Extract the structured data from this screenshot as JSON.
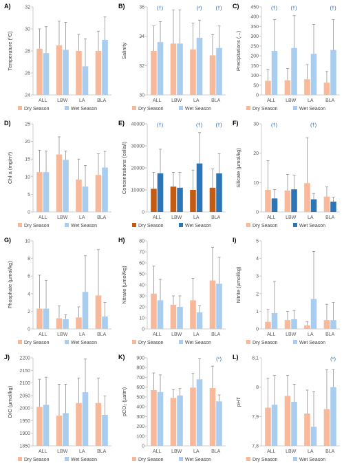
{
  "colors": {
    "dry_light": "#f7b99a",
    "wet_light": "#a8cdee",
    "dry_dark": "#c55a11",
    "wet_dark": "#2e75b6",
    "axis": "#bfbfbf",
    "text": "#595959",
    "sig": "#1f5fa8"
  },
  "chart_data": [
    {
      "type": "bar",
      "panel": "A)",
      "ylabel": "Temperature (ºC)",
      "categories": [
        "ALL",
        "LBW",
        "LA",
        "BLA"
      ],
      "ylim": [
        24,
        32
      ],
      "yticks": [
        24,
        26,
        28,
        30,
        32
      ],
      "decimals": 0,
      "series": [
        {
          "name": "Dry Season",
          "values": [
            28.2,
            28.5,
            28.0,
            28.0
          ],
          "errors": [
            1.8,
            2.2,
            1.5,
            1.8
          ]
        },
        {
          "name": "Wet Season",
          "values": [
            27.8,
            28.1,
            26.6,
            29.0
          ],
          "errors": [
            2.4,
            2.5,
            2.5,
            2.1
          ]
        }
      ],
      "significance": [
        "",
        "",
        "",
        ""
      ],
      "style": "light",
      "legend": "bottom"
    },
    {
      "type": "bar",
      "panel": "B)",
      "ylabel": "Salinity",
      "categories": [
        "ALL",
        "LBW",
        "LA",
        "BLA"
      ],
      "ylim": [
        30,
        36
      ],
      "yticks": [
        30,
        32,
        34,
        36
      ],
      "decimals": 0,
      "series": [
        {
          "name": "Dry Season",
          "values": [
            33.0,
            33.5,
            33.1,
            32.7
          ],
          "errors": [
            1.7,
            2.3,
            1.8,
            1.4
          ]
        },
        {
          "name": "Wet Season",
          "values": [
            33.6,
            33.5,
            33.9,
            33.2
          ],
          "errors": [
            1.4,
            2.3,
            1.2,
            1.5
          ]
        }
      ],
      "significance": [
        "(†)",
        "",
        "(*)",
        "(†)"
      ],
      "style": "light",
      "legend": "bottom"
    },
    {
      "type": "bar",
      "panel": "C)",
      "ylabel": "Precipitations (...)",
      "categories": [
        "ALL",
        "LBW",
        "LA",
        "BLA"
      ],
      "ylim": [
        0,
        450
      ],
      "yticks": [
        0,
        50,
        100,
        150,
        200,
        250,
        300,
        350,
        400,
        450
      ],
      "decimals": 0,
      "series": [
        {
          "name": "Dry Season",
          "values": [
            72,
            75,
            80,
            63
          ],
          "errors": [
            60,
            60,
            75,
            57
          ]
        },
        {
          "name": "Wet Season",
          "values": [
            225,
            240,
            210,
            230
          ],
          "errors": [
            160,
            165,
            150,
            155
          ]
        }
      ],
      "significance": [
        "(†)",
        "(†)",
        "",
        "(†)"
      ],
      "style": "light",
      "legend": "bottom"
    },
    {
      "type": "bar",
      "panel": "D)",
      "ylabel": "Chl-a (mg/m³)",
      "categories": [
        "ALL",
        "LBW",
        "LA",
        "BLA"
      ],
      "ylim": [
        0,
        25
      ],
      "yticks": [
        0,
        5,
        10,
        15,
        20,
        25
      ],
      "decimals": 0,
      "series": [
        {
          "name": "Dry Season",
          "values": [
            11.3,
            16.3,
            9.2,
            10.5
          ],
          "errors": [
            6.2,
            5.0,
            5.8,
            6.0
          ]
        },
        {
          "name": "Wet Season",
          "values": [
            11.3,
            14.8,
            7.2,
            12.6
          ],
          "errors": [
            6.0,
            2.5,
            6.0,
            4.6
          ]
        }
      ],
      "significance": [
        "",
        "",
        "",
        ""
      ],
      "style": "light",
      "legend": "bottom"
    },
    {
      "type": "bar",
      "panel": "E)",
      "ylabel": "Concentrations (cells/l)",
      "categories": [
        "ALL",
        "LBW",
        "LA",
        "BLA"
      ],
      "ylim": [
        0,
        40000
      ],
      "yticks": [
        0,
        10000,
        20000,
        30000,
        40000
      ],
      "decimals": 0,
      "series": [
        {
          "name": "Dry Season",
          "values": [
            10500,
            11500,
            10000,
            11000
          ],
          "errors": [
            7500,
            6500,
            9000,
            8500
          ]
        },
        {
          "name": "Wet Season",
          "values": [
            17500,
            11000,
            22000,
            17500
          ],
          "errors": [
            11000,
            7000,
            14000,
            9000
          ]
        }
      ],
      "significance": [
        "(†)",
        "",
        "(†)",
        "(†)"
      ],
      "style": "dark",
      "legend": "bottom"
    },
    {
      "type": "bar",
      "panel": "F)",
      "ylabel": "Silicate (µmol/kg)",
      "categories": [
        "ALL",
        "LBW",
        "LA",
        "BLA"
      ],
      "ylim": [
        0,
        30
      ],
      "yticks": [
        0,
        10,
        20,
        30
      ],
      "decimals": 0,
      "series": [
        {
          "name": "Dry Season",
          "values": [
            7.5,
            7.3,
            9.8,
            5.2
          ],
          "errors": [
            10.0,
            5.5,
            15.5,
            3.3
          ]
        },
        {
          "name": "Wet Season",
          "values": [
            4.6,
            7.7,
            4.3,
            3.5
          ],
          "errors": [
            3.0,
            4.8,
            2.0,
            1.5
          ]
        }
      ],
      "significance": [
        "(†)",
        "",
        "(†)",
        ""
      ],
      "style": "mixed",
      "legend": "bottom"
    },
    {
      "type": "bar",
      "panel": "G)",
      "ylabel": "Phosphate (µmol/kg)",
      "categories": [
        "ALL",
        "LBW",
        "LA",
        "BLA"
      ],
      "ylim": [
        0,
        10
      ],
      "yticks": [
        0,
        2,
        4,
        6,
        8,
        10
      ],
      "decimals": 0,
      "series": [
        {
          "name": "Dry Season",
          "values": [
            2.3,
            1.2,
            1.3,
            3.8
          ],
          "errors": [
            3.8,
            1.4,
            1.2,
            5.2
          ]
        },
        {
          "name": "Wet Season",
          "values": [
            2.3,
            1.1,
            4.2,
            1.4
          ],
          "errors": [
            3.2,
            0.5,
            4.1,
            1.6
          ]
        }
      ],
      "significance": [
        "",
        "",
        "",
        ""
      ],
      "style": "light",
      "legend": "bottom"
    },
    {
      "type": "bar",
      "panel": "H)",
      "ylabel": "Nitrate (µmol/kg)",
      "categories": [
        "ALL",
        "LBW",
        "LA",
        "BLA"
      ],
      "ylim": [
        0,
        80
      ],
      "yticks": [
        0,
        10,
        20,
        30,
        40,
        50,
        60,
        70,
        80
      ],
      "decimals": 0,
      "series": [
        {
          "name": "Dry Season",
          "values": [
            32,
            22,
            26,
            44
          ],
          "errors": [
            25,
            8,
            20,
            30
          ]
        },
        {
          "name": "Wet Season",
          "values": [
            26,
            20,
            15,
            41
          ],
          "errors": [
            19,
            10,
            6,
            24
          ]
        }
      ],
      "significance": [
        "",
        "",
        "",
        ""
      ],
      "style": "light",
      "legend": "bottom"
    },
    {
      "type": "bar",
      "panel": "I)",
      "ylabel": "Nitrite (µmol/kg)",
      "categories": [
        "ALL",
        "LBW",
        "LA",
        "BLA"
      ],
      "ylim": [
        0,
        5
      ],
      "yticks": [
        0,
        1,
        2,
        3,
        4,
        5
      ],
      "decimals": 0,
      "series": [
        {
          "name": "Dry Season",
          "values": [
            0.4,
            0.5,
            0.2,
            0.5
          ],
          "errors": [
            0.7,
            0.5,
            0.2,
            0.9
          ]
        },
        {
          "name": "Wet Season",
          "values": [
            0.9,
            0.55,
            1.7,
            0.5
          ],
          "errors": [
            1.8,
            0.5,
            2.7,
            1.0
          ]
        }
      ],
      "significance": [
        "",
        "",
        "",
        ""
      ],
      "style": "light",
      "legend": "bottom"
    },
    {
      "type": "bar",
      "panel": "J)",
      "ylabel": "DIC (µmol/kg)",
      "categories": [
        "ALL",
        "LBW",
        "LA",
        "BLA"
      ],
      "ylim": [
        1850,
        2200
      ],
      "yticks": [
        1850,
        1900,
        1950,
        2000,
        2050,
        2100,
        2150,
        2200
      ],
      "decimals": 0,
      "series": [
        {
          "name": "Dry Season",
          "values": [
            2005,
            1970,
            2020,
            2020
          ],
          "errors": [
            110,
            125,
            100,
            100
          ]
        },
        {
          "name": "Wet Season",
          "values": [
            2013,
            1980,
            2063,
            1973
          ],
          "errors": [
            110,
            115,
            132,
            75
          ]
        }
      ],
      "significance": [
        "",
        "",
        "",
        ""
      ],
      "style": "light",
      "legend": "bottom"
    },
    {
      "type": "bar",
      "panel": "K)",
      "ylabel": "pCO₂ (µatm)",
      "categories": [
        "ALL",
        "LBW",
        "LA",
        "BLA"
      ],
      "ylim": [
        0,
        900
      ],
      "yticks": [
        0,
        100,
        200,
        300,
        400,
        500,
        600,
        700,
        800,
        900
      ],
      "decimals": 0,
      "series": [
        {
          "name": "Dry Season",
          "values": [
            570,
            490,
            595,
            590
          ],
          "errors": [
            175,
            85,
            145,
            225
          ]
        },
        {
          "name": "Wet Season",
          "values": [
            550,
            515,
            680,
            455
          ],
          "errors": [
            175,
            70,
            210,
            65
          ]
        }
      ],
      "significance": [
        "",
        "",
        "",
        "(*)"
      ],
      "style": "light",
      "legend": "bottom"
    },
    {
      "type": "bar",
      "panel": "L)",
      "ylabel": "pHT",
      "categories": [
        "ALL",
        "LBW",
        "LA",
        "BLA"
      ],
      "ylim": [
        7.8,
        8.1
      ],
      "yticks": [
        7.8,
        7.9,
        8.0,
        8.1
      ],
      "ytick_labels": [
        "7,8",
        "7,9",
        "8",
        "8,1"
      ],
      "decimals": 1,
      "series": [
        {
          "name": "Dry Season",
          "values": [
            7.93,
            7.97,
            7.91,
            7.925
          ],
          "errors": [
            0.1,
            0.07,
            0.08,
            0.135
          ]
        },
        {
          "name": "Wet Season",
          "values": [
            7.94,
            7.95,
            7.865,
            8.0
          ],
          "errors": [
            0.1,
            0.06,
            0.12,
            0.06
          ]
        }
      ],
      "significance": [
        "",
        "",
        "",
        "(*)"
      ],
      "style": "light",
      "legend": "bottom"
    }
  ]
}
